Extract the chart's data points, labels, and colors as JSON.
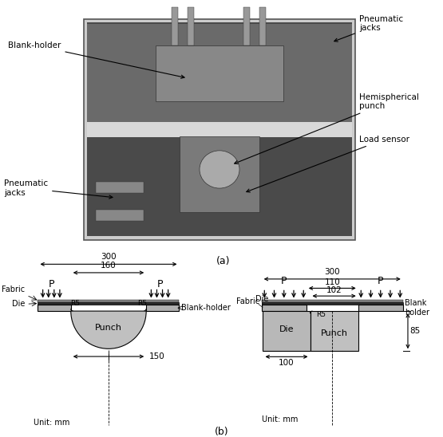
{
  "fig_label_a": "(a)",
  "fig_label_b": "(b)",
  "annotations_photo": {
    "blank_holder": "Blank-holder",
    "pneumatic_jacks_top": "Pneumatic\njacks",
    "hemispherical_punch": "Hemispherical\npunch",
    "load_sensor": "Load sensor",
    "pneumatic_jacks_bottom": "Pneumatic\njacks"
  },
  "left_diagram": {
    "dim_300": "300",
    "dim_160": "160",
    "dim_150": "150",
    "r5_label": "R5",
    "p_label": "P",
    "punch_label": "Punch",
    "die_label": "Die",
    "fabric_label": "Fabric",
    "blank_holder_label": "Blank-holder",
    "unit": "Unit: mm"
  },
  "right_diagram": {
    "dim_300": "300",
    "dim_110": "110",
    "dim_102": "102",
    "dim_100": "100",
    "dim_85": "85",
    "r5_label": "R5",
    "p_label": "P",
    "punch_label": "Punch",
    "die_label": "Die",
    "fabric_label": "Fabric",
    "blank_holder_label": "Blank\nholder",
    "unit": "Unit: mm"
  }
}
